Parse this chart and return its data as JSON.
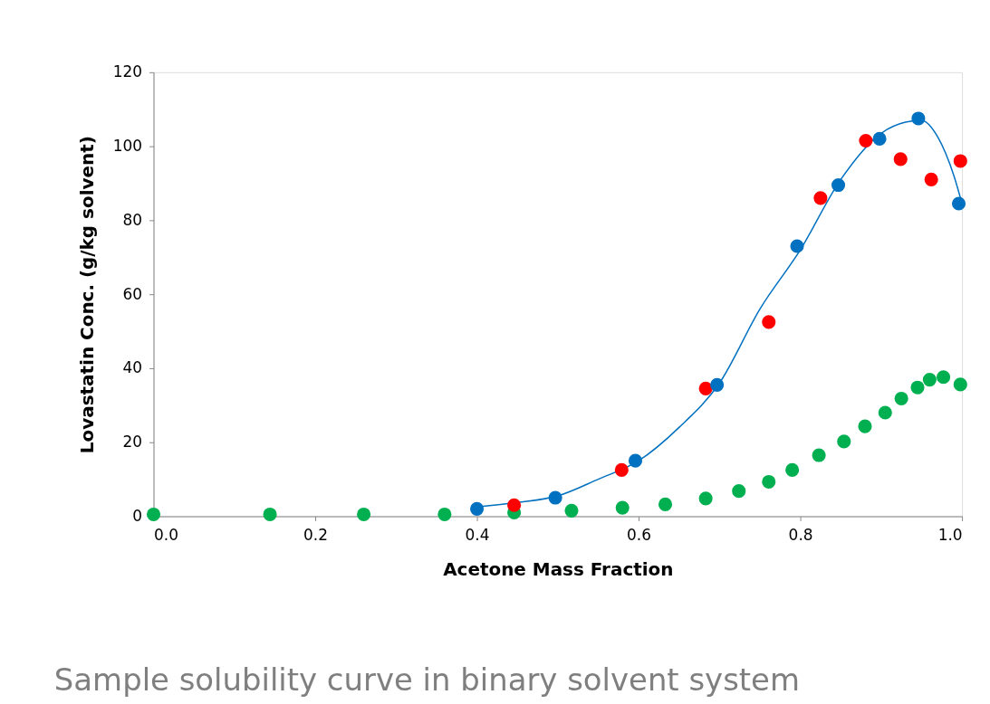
{
  "chart_data": {
    "type": "scatter",
    "xlabel": "Acetone Mass Fraction",
    "ylabel": "Lovastatin Conc. (g/kg solvent)",
    "annotations": [
      "Sample solubility curve in binary solvent system"
    ],
    "xlim": [
      0,
      1
    ],
    "ylim": [
      0,
      120
    ],
    "xticks": [
      {
        "value": 0,
        "label": "0.0"
      },
      0.2,
      0.4,
      0.6,
      0.8,
      {
        "value": 1,
        "label": "1.0"
      }
    ],
    "yticks": [
      0,
      20,
      40,
      60,
      80,
      100,
      120
    ],
    "grid": false,
    "marker": "circle",
    "series": [
      {
        "type": "line",
        "color": "#0070c0",
        "line_style": "solid",
        "marker": "none",
        "x": [
          0.4,
          0.45,
          0.5,
          0.55,
          0.6,
          0.65,
          0.7,
          0.75,
          0.8,
          0.85,
          0.9,
          0.93,
          0.95,
          0.97,
          0.99,
          1.0
        ],
        "values": [
          2.5,
          3.7,
          5.5,
          10,
          15,
          24,
          36,
          56,
          72,
          91,
          103.5,
          106.5,
          107,
          102.5,
          92,
          84.5
        ]
      },
      {
        "color": "#00b050",
        "x": [
          0.0,
          0.144,
          0.26,
          0.36,
          0.446,
          0.517,
          0.58,
          0.633,
          0.683,
          0.724,
          0.761,
          0.79,
          0.823,
          0.854,
          0.88,
          0.905,
          0.925,
          0.945,
          0.96,
          0.977,
          0.998
        ],
        "values": [
          0.5,
          0.5,
          0.5,
          0.5,
          1,
          1.5,
          2.3,
          3.2,
          4.8,
          6.8,
          9.3,
          12.5,
          16.5,
          20.2,
          24.3,
          28,
          31.8,
          34.8,
          36.9,
          37.6,
          35.6
        ]
      },
      {
        "color": "#ff0000",
        "x": [
          0.446,
          0.579,
          0.683,
          0.761,
          0.825,
          0.881,
          0.924,
          0.962,
          0.998
        ],
        "values": [
          3,
          12.5,
          34.5,
          52.5,
          86,
          101.5,
          96.5,
          91,
          96
        ]
      },
      {
        "color": "#0070c0",
        "x": [
          0.4,
          0.497,
          0.596,
          0.697,
          0.796,
          0.847,
          0.898,
          0.946,
          0.996
        ],
        "values": [
          2,
          5,
          15,
          35.5,
          73,
          89.5,
          102,
          107.5,
          84.5
        ]
      }
    ]
  }
}
